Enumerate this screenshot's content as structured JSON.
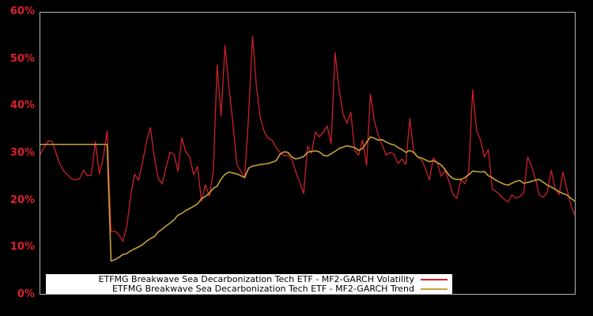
{
  "theme": {
    "background": "#000000",
    "plot_border_color": "#b6b6b6",
    "tick_label_color": "#dc2030",
    "legend_background": "#ffffff",
    "legend_text_color": "#000000"
  },
  "chart_data": {
    "type": "line",
    "title": "",
    "x_axis": {
      "tick_labels": []
    },
    "ylim": [
      0,
      60
    ],
    "y_tick_labels_top_to_bottom": [
      "60%",
      "50%",
      "40%",
      "30%",
      "20%",
      "10%",
      "0%"
    ],
    "y_tick_format": "percent",
    "grid": false,
    "legend_position": "bottom-center-inside",
    "series": [
      {
        "name": "ETFMG Breakwave Sea Decarbonization Tech ETF - MF2-GARCH Volatility",
        "color": "#cd2129",
        "values": [
          29.8,
          31.3,
          32.7,
          32.5,
          30.0,
          27.6,
          26.2,
          25.3,
          24.5,
          24.3,
          24.6,
          26.4,
          25.2,
          25.3,
          32.5,
          25.6,
          29.0,
          34.8,
          13.2,
          13.4,
          12.6,
          11.2,
          14.4,
          21.0,
          25.5,
          24.2,
          28.0,
          32.5,
          35.5,
          29.2,
          24.6,
          23.5,
          27.0,
          30.2,
          29.8,
          26.2,
          33.3,
          30.3,
          29.3,
          25.4,
          27.2,
          19.8,
          23.3,
          20.8,
          26.0,
          48.8,
          38.0,
          53.0,
          44.0,
          36.5,
          27.6,
          26.2,
          24.7,
          38.0,
          55.0,
          44.0,
          37.5,
          34.5,
          33.2,
          32.8,
          31.2,
          30.2,
          29.5,
          29.6,
          28.7,
          26.1,
          23.8,
          21.4,
          31.5,
          30.0,
          34.5,
          33.5,
          34.5,
          35.8,
          32.0,
          51.5,
          43.8,
          38.4,
          36.4,
          38.8,
          30.6,
          29.6,
          32.8,
          27.4,
          42.6,
          36.8,
          33.8,
          31.8,
          29.6,
          30.2,
          29.8,
          27.8,
          28.8,
          27.6,
          37.4,
          30.4,
          29.2,
          28.6,
          26.8,
          24.3,
          29.0,
          28.0,
          25.1,
          26.3,
          24.0,
          21.2,
          20.4,
          24.4,
          23.5,
          26.0,
          43.5,
          34.8,
          32.8,
          29.2,
          30.8,
          22.4,
          21.8,
          21.1,
          20.2,
          19.6,
          21.1,
          20.4,
          20.8,
          21.5,
          29.2,
          27.2,
          24.4,
          21.1,
          20.6,
          21.7,
          26.4,
          22.4,
          21.2,
          26.0,
          22.3,
          18.9,
          16.8
        ]
      },
      {
        "name": "ETFMG Breakwave Sea Decarbonization Tech ETF - MF2-GARCH Trend",
        "color": "#c4a239",
        "values": [
          31.9,
          31.9,
          31.9,
          31.9,
          31.9,
          31.9,
          31.9,
          31.9,
          31.9,
          31.9,
          31.9,
          31.9,
          31.9,
          31.9,
          31.9,
          31.9,
          31.9,
          31.9,
          7.0,
          7.3,
          7.8,
          8.4,
          8.6,
          9.2,
          9.6,
          10.0,
          10.5,
          11.2,
          11.8,
          12.2,
          13.2,
          13.8,
          14.5,
          15.1,
          15.8,
          16.8,
          17.2,
          17.8,
          18.2,
          18.7,
          19.2,
          20.3,
          20.8,
          21.5,
          22.5,
          23.0,
          24.5,
          25.5,
          26.0,
          25.8,
          25.6,
          25.2,
          24.8,
          26.8,
          27.3,
          27.4,
          27.6,
          27.7,
          27.8,
          28.1,
          28.4,
          29.8,
          30.3,
          30.2,
          29.2,
          28.8,
          29.0,
          29.3,
          30.2,
          30.4,
          30.5,
          30.3,
          29.6,
          29.4,
          29.9,
          30.4,
          31.0,
          31.3,
          31.6,
          31.4,
          31.2,
          30.6,
          31.0,
          32.3,
          33.5,
          33.2,
          32.8,
          32.9,
          32.4,
          32.0,
          31.8,
          31.2,
          30.8,
          30.2,
          30.6,
          30.2,
          29.2,
          29.0,
          28.6,
          28.2,
          28.4,
          28.0,
          27.5,
          26.5,
          25.3,
          24.6,
          24.4,
          24.4,
          24.8,
          25.4,
          26.2,
          26.1,
          26.0,
          26.1,
          25.2,
          24.8,
          24.2,
          23.8,
          23.4,
          23.2,
          23.6,
          24.0,
          24.2,
          23.6,
          23.8,
          24.0,
          24.3,
          24.4,
          23.8,
          23.2,
          22.8,
          22.3,
          21.8,
          21.4,
          21.1,
          20.4,
          19.8
        ]
      }
    ]
  }
}
